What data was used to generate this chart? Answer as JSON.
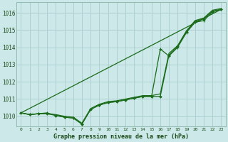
{
  "title": "Graphe pression niveau de la mer (hPa)",
  "background_color": "#cce8e8",
  "grid_color": "#aacccc",
  "line_color": "#1a6b1a",
  "xlim": [
    -0.5,
    23.5
  ],
  "ylim": [
    1009.4,
    1016.6
  ],
  "yticks": [
    1010,
    1011,
    1012,
    1013,
    1014,
    1015,
    1016
  ],
  "xticks": [
    0,
    1,
    2,
    3,
    4,
    5,
    6,
    7,
    8,
    9,
    10,
    11,
    12,
    13,
    14,
    15,
    16,
    17,
    18,
    19,
    20,
    21,
    22,
    23
  ],
  "series_line": {
    "x": [
      0,
      1,
      2,
      3,
      4,
      5,
      6,
      7,
      8,
      9,
      10,
      11,
      12,
      13,
      14,
      15,
      16,
      17,
      18,
      19,
      20,
      21,
      22,
      23
    ],
    "y": [
      1010.2,
      1010.1,
      1010.15,
      1010.15,
      1010.05,
      1009.95,
      1009.9,
      1009.55,
      1010.4,
      1010.65,
      1010.8,
      1010.85,
      1010.95,
      1011.05,
      1011.15,
      1011.15,
      1011.15,
      1013.55,
      1014.05,
      1014.9,
      1015.5,
      1015.65,
      1016.1,
      1016.2
    ]
  },
  "series_marker": {
    "x": [
      0,
      1,
      2,
      3,
      4,
      5,
      6,
      7,
      8,
      9,
      10,
      11,
      12,
      13,
      14,
      15,
      16,
      17,
      18,
      19,
      20,
      21,
      22,
      23
    ],
    "y": [
      1010.2,
      1010.1,
      1010.15,
      1010.2,
      1010.05,
      1009.95,
      1009.9,
      1009.55,
      1010.4,
      1010.65,
      1010.8,
      1010.85,
      1010.95,
      1011.05,
      1011.15,
      1011.15,
      1013.9,
      1013.5,
      1014.0,
      1014.85,
      1015.45,
      1015.55,
      1016.05,
      1016.2
    ]
  },
  "series_straight": {
    "x": [
      0,
      23
    ],
    "y": [
      1010.2,
      1016.2
    ]
  },
  "series_top": {
    "x": [
      0,
      1,
      2,
      3,
      4,
      5,
      6,
      7,
      8,
      9,
      10,
      11,
      12,
      13,
      14,
      15,
      16,
      17,
      18,
      19,
      20,
      21,
      22,
      23
    ],
    "y": [
      1010.2,
      1010.1,
      1010.15,
      1010.15,
      1010.1,
      1010.0,
      1009.95,
      1009.6,
      1010.45,
      1010.7,
      1010.85,
      1010.9,
      1011.0,
      1011.1,
      1011.2,
      1011.2,
      1011.3,
      1013.65,
      1014.1,
      1014.95,
      1015.55,
      1015.7,
      1016.15,
      1016.25
    ]
  }
}
